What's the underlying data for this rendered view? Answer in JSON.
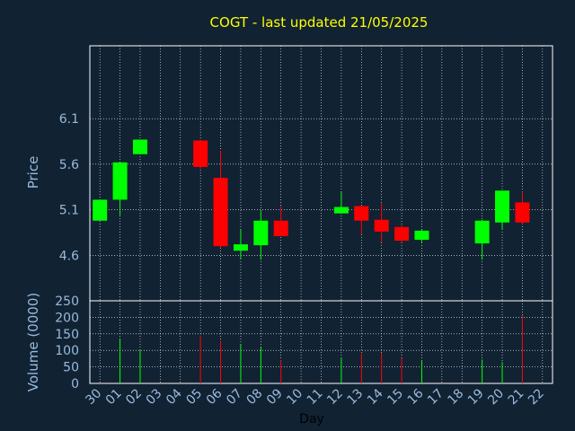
{
  "chart_data": {
    "type": "candlestick",
    "title": "COGT - last updated 21/05/2025",
    "xlabel": "Day",
    "price_panel": {
      "ylabel": "Price",
      "yticks": [
        4.6,
        5.1,
        5.6,
        6.1
      ],
      "ylim": [
        4.1,
        6.9
      ]
    },
    "volume_panel": {
      "ylabel": "Volume (0000)",
      "yticks": [
        0,
        50,
        100,
        150,
        200,
        250
      ],
      "ylim": [
        0,
        250
      ]
    },
    "categories": [
      "30",
      "01",
      "02",
      "03",
      "04",
      "05",
      "06",
      "07",
      "08",
      "09",
      "10",
      "11",
      "12",
      "13",
      "14",
      "15",
      "16",
      "17",
      "18",
      "19",
      "20",
      "21",
      "22"
    ],
    "colors": {
      "up": "#00ff00",
      "down": "#ff0000",
      "grid": "#ffffff",
      "background": "#112233",
      "plot_border": "#ffffff"
    },
    "candles": [
      {
        "day": "30",
        "open": 4.98,
        "high": 5.21,
        "low": 4.98,
        "close": 5.21
      },
      {
        "day": "01",
        "open": 5.21,
        "high": 5.62,
        "low": 5.04,
        "close": 5.62
      },
      {
        "day": "02",
        "open": 5.71,
        "high": 5.87,
        "low": 5.71,
        "close": 5.87
      },
      {
        "day": "05",
        "open": 5.86,
        "high": 5.87,
        "low": 5.55,
        "close": 5.57
      },
      {
        "day": "06",
        "open": 5.45,
        "high": 5.75,
        "low": 4.68,
        "close": 4.7
      },
      {
        "day": "07",
        "open": 4.65,
        "high": 4.88,
        "low": 4.56,
        "close": 4.72
      },
      {
        "day": "08",
        "open": 4.71,
        "high": 5.09,
        "low": 4.55,
        "close": 4.98
      },
      {
        "day": "09",
        "open": 4.98,
        "high": 5.14,
        "low": 4.81,
        "close": 4.81
      },
      {
        "day": "12",
        "open": 5.06,
        "high": 5.3,
        "low": 5.06,
        "close": 5.13
      },
      {
        "day": "13",
        "open": 5.14,
        "high": 5.14,
        "low": 4.83,
        "close": 4.98
      },
      {
        "day": "14",
        "open": 4.99,
        "high": 5.17,
        "low": 4.74,
        "close": 4.86
      },
      {
        "day": "15",
        "open": 4.91,
        "high": 4.93,
        "low": 4.74,
        "close": 4.76
      },
      {
        "day": "16",
        "open": 4.77,
        "high": 4.88,
        "low": 4.73,
        "close": 4.87
      },
      {
        "day": "19",
        "open": 4.73,
        "high": 4.99,
        "low": 4.55,
        "close": 4.98
      },
      {
        "day": "20",
        "open": 4.96,
        "high": 5.31,
        "low": 4.89,
        "close": 5.31
      },
      {
        "day": "21",
        "open": 5.18,
        "high": 5.3,
        "low": 4.94,
        "close": 4.96
      }
    ],
    "volumes": [
      {
        "day": "01",
        "value": 135,
        "dir": "up"
      },
      {
        "day": "02",
        "value": 100,
        "dir": "up"
      },
      {
        "day": "05",
        "value": 145,
        "dir": "down"
      },
      {
        "day": "06",
        "value": 130,
        "dir": "down"
      },
      {
        "day": "07",
        "value": 118,
        "dir": "up"
      },
      {
        "day": "08",
        "value": 110,
        "dir": "up"
      },
      {
        "day": "09",
        "value": 70,
        "dir": "down"
      },
      {
        "day": "12",
        "value": 78,
        "dir": "up"
      },
      {
        "day": "13",
        "value": 90,
        "dir": "down"
      },
      {
        "day": "14",
        "value": 92,
        "dir": "down"
      },
      {
        "day": "15",
        "value": 76,
        "dir": "down"
      },
      {
        "day": "16",
        "value": 70,
        "dir": "up"
      },
      {
        "day": "19",
        "value": 72,
        "dir": "up"
      },
      {
        "day": "20",
        "value": 65,
        "dir": "up"
      },
      {
        "day": "21",
        "value": 205,
        "dir": "down"
      }
    ]
  }
}
